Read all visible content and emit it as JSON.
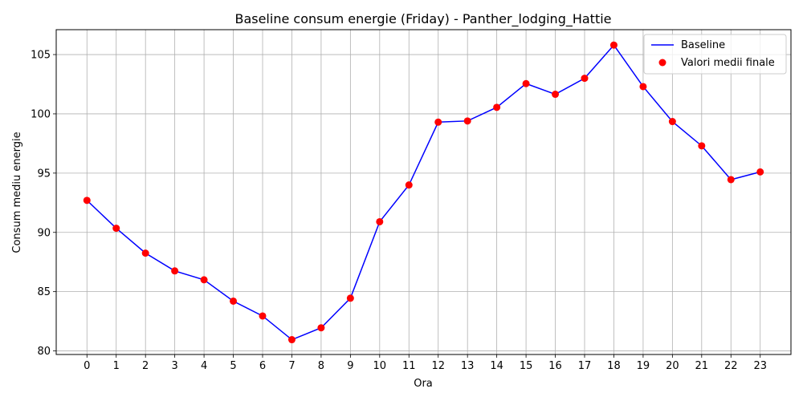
{
  "chart_data": {
    "type": "line",
    "title": "Baseline consum energie (Friday) - Panther_lodging_Hattie",
    "xlabel": "Ora",
    "ylabel": "Consum mediu energie",
    "x": [
      0,
      1,
      2,
      3,
      4,
      5,
      6,
      7,
      8,
      9,
      10,
      11,
      12,
      13,
      14,
      15,
      16,
      17,
      18,
      19,
      20,
      21,
      22,
      23
    ],
    "x_tick_labels": [
      "0",
      "1",
      "2",
      "3",
      "4",
      "5",
      "6",
      "7",
      "8",
      "9",
      "10",
      "11",
      "12",
      "13",
      "14",
      "15",
      "16",
      "17",
      "18",
      "19",
      "20",
      "21",
      "22",
      "23"
    ],
    "y_ticks": [
      80,
      85,
      90,
      95,
      100,
      105
    ],
    "y_tick_labels": [
      "80",
      "85",
      "90",
      "95",
      "100",
      "105"
    ],
    "xlim": [
      -1.05,
      24.05
    ],
    "ylim": [
      79.7,
      107.1
    ],
    "grid": true,
    "legend_position": "top-right",
    "series": [
      {
        "name": "Baseline",
        "kind": "line",
        "color": "#0000ff",
        "values": [
          92.7,
          90.35,
          88.25,
          86.75,
          86.0,
          84.2,
          82.95,
          80.95,
          81.95,
          84.45,
          90.9,
          94.0,
          99.3,
          99.4,
          100.55,
          102.55,
          101.65,
          103.0,
          105.8,
          102.3,
          99.35,
          97.3,
          94.45,
          95.1
        ]
      },
      {
        "name": "Valori medii finale",
        "kind": "scatter",
        "color": "#ff0000",
        "values": [
          92.7,
          90.35,
          88.25,
          86.75,
          86.0,
          84.2,
          82.95,
          80.95,
          81.95,
          84.45,
          90.9,
          94.0,
          99.3,
          99.4,
          100.55,
          102.55,
          101.65,
          103.0,
          105.8,
          102.3,
          99.35,
          97.3,
          94.45,
          95.1
        ]
      }
    ]
  }
}
